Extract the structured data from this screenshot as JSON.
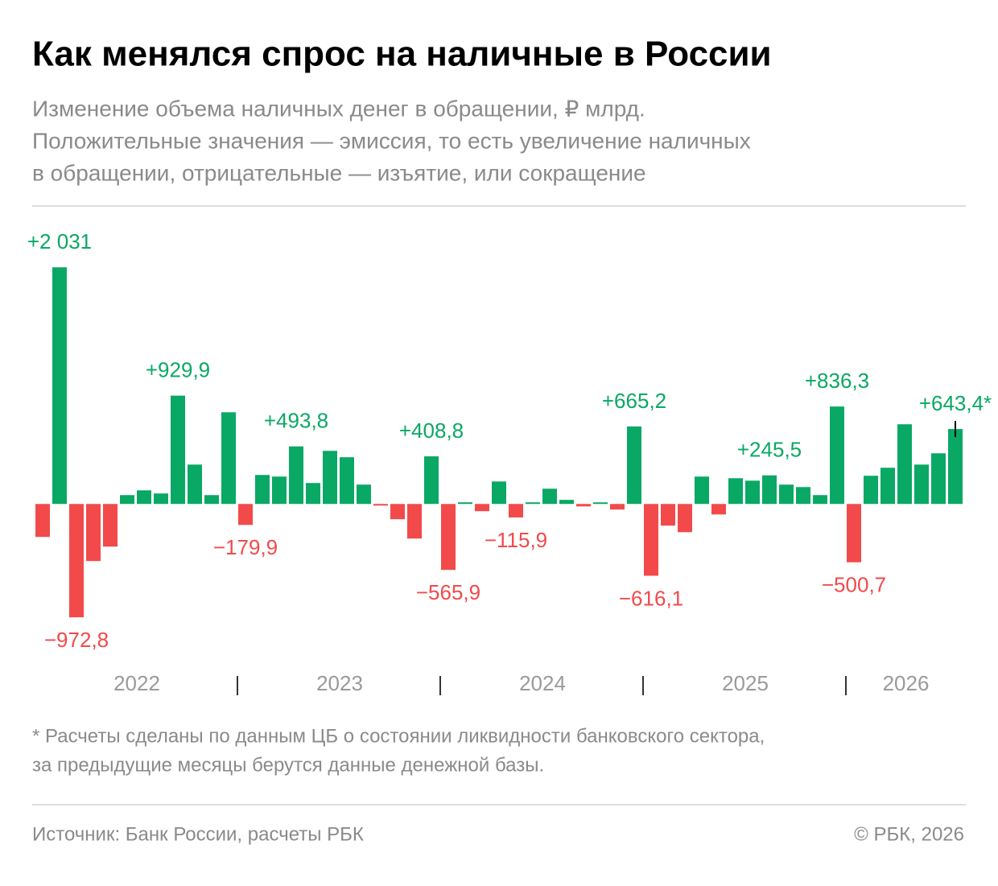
{
  "chart_data": {
    "type": "bar",
    "title": "Как менялся спрос на наличные в России",
    "subtitle": [
      "Изменение объема наличных денег в обращении, ₽ млрд.",
      "Положительные значения — эмиссия, то есть увеличение наличных",
      "в обращении, отрицательные — изъятие, или сокращение"
    ],
    "categories": [
      null,
      null,
      null,
      null,
      null,
      null,
      null,
      null,
      null,
      null,
      null,
      null,
      null,
      null,
      null,
      null,
      null,
      null,
      null,
      null,
      null,
      null,
      null,
      null,
      null,
      null,
      null,
      null,
      null,
      null,
      null,
      null,
      null,
      null,
      null,
      null,
      null,
      null,
      null,
      null,
      null,
      null,
      null,
      null,
      null,
      null,
      null,
      null,
      null,
      null,
      null,
      null,
      null,
      null,
      null
    ],
    "x_groups": [
      "2022",
      "2023",
      "2024",
      "2025",
      "2026"
    ],
    "values": [
      -283,
      2031,
      -972.8,
      -490,
      -366,
      76,
      117,
      90,
      929.9,
      338,
      76,
      787,
      -179.9,
      249,
      235,
      493.8,
      180,
      456,
      401,
      166,
      -14,
      -131,
      -297,
      408.8,
      -565.9,
      14,
      -62,
      193,
      -115.9,
      14,
      131,
      35,
      -21,
      14,
      -48,
      665.2,
      -616.1,
      -186,
      -242,
      235,
      -90,
      221,
      200,
      245.5,
      166,
      145,
      76,
      836.3,
      -500.7,
      242,
      311,
      684,
      338,
      435,
      643.4
    ],
    "value_labels": [
      null,
      "+2 031",
      "−972,8",
      null,
      null,
      null,
      null,
      null,
      "+929,9",
      null,
      null,
      null,
      "−179,9",
      null,
      null,
      "+493,8",
      null,
      null,
      null,
      null,
      null,
      null,
      null,
      "+408,8",
      "−565,9",
      null,
      null,
      null,
      "−115,9",
      null,
      null,
      null,
      null,
      null,
      null,
      "+665,2",
      "−616,1",
      null,
      null,
      null,
      null,
      null,
      null,
      "+245,5",
      null,
      null,
      null,
      "+836,3",
      "−500,7",
      null,
      null,
      null,
      null,
      null,
      "+643,4*"
    ],
    "colors": {
      "positive": "#0aa865",
      "negative": "#f24a4a"
    },
    "ylim": [
      -1200,
      2350
    ],
    "footnote": [
      "* Расчеты сделаны по данным ЦБ о состоянии ликвидности банковского сектора,",
      "за предыдущие месяцы берутся данные денежной базы."
    ],
    "source": "Источник: Банк России, расчеты РБК",
    "copyright": "© РБК, 2026"
  }
}
